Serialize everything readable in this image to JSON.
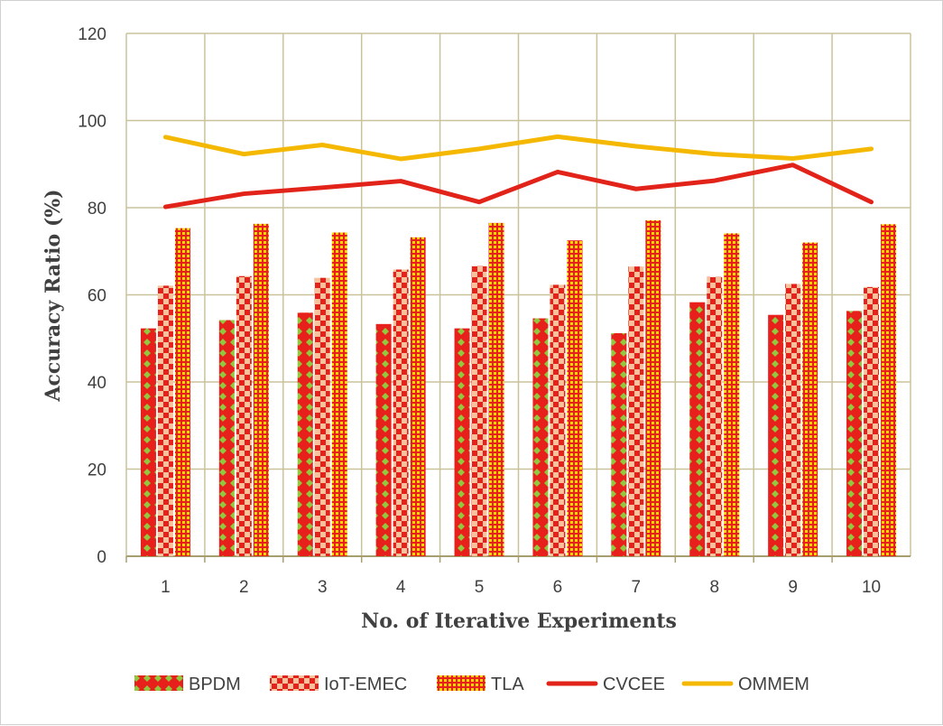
{
  "chart_data": {
    "type": "bar",
    "title": "",
    "xlabel": "No. of Iterative Experiments",
    "ylabel": "Accuracy Ratio (%)",
    "ylim": [
      0,
      120
    ],
    "yticks": [
      0,
      20,
      40,
      60,
      80,
      100,
      120
    ],
    "grid": true,
    "legend_position": "bottom",
    "categories": [
      "1",
      "2",
      "3",
      "4",
      "5",
      "6",
      "7",
      "8",
      "9",
      "10"
    ],
    "series": [
      {
        "name": "BPDM",
        "kind": "bar",
        "values": [
          52.3,
          54.2,
          55.9,
          53.3,
          52.3,
          54.6,
          51.2,
          58.3,
          55.4,
          56.3
        ]
      },
      {
        "name": "IoT-EMEC",
        "kind": "bar",
        "values": [
          62.1,
          64.3,
          63.9,
          65.8,
          66.6,
          62.3,
          66.5,
          64.1,
          62.5,
          61.8
        ]
      },
      {
        "name": "TLA",
        "kind": "bar",
        "values": [
          75.3,
          76.3,
          74.3,
          73.2,
          76.5,
          72.5,
          77.1,
          74.1,
          72.0,
          76.2
        ]
      },
      {
        "name": "CVCEE",
        "kind": "line",
        "values": [
          80.2,
          83.2,
          84.6,
          86.1,
          81.3,
          88.2,
          84.3,
          86.2,
          89.8,
          81.3
        ]
      },
      {
        "name": "OMMEM",
        "kind": "line",
        "values": [
          96.2,
          92.3,
          94.4,
          91.2,
          93.5,
          96.3,
          94.1,
          92.3,
          91.3,
          93.5
        ]
      }
    ],
    "colors": {
      "bar_red": "#e8201c",
      "bpdm_dot": "#92c83e",
      "iot_dot": "#f5c39c",
      "tla_grid": "#ffd700",
      "cvcee": "#e2231a",
      "ommem": "#f5b800",
      "grid": "#c9c39a",
      "axis": "#a89f70"
    }
  }
}
